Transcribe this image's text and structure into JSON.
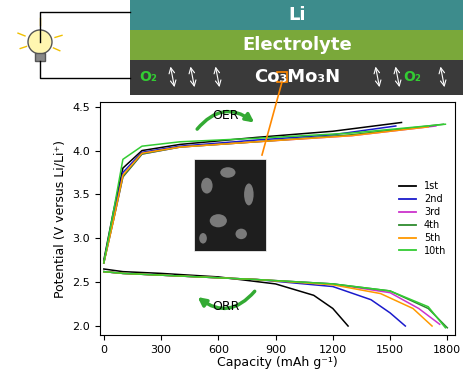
{
  "chart_data": {
    "type": "line",
    "xlabel": "Capacity (mAh g⁻¹)",
    "ylabel": "Potential (V versus Li/Li⁺)",
    "xlim": [
      -20,
      1840
    ],
    "xticks": [
      0,
      300,
      600,
      900,
      1200,
      1500,
      1800
    ],
    "ylim": [
      1.9,
      4.55
    ],
    "yticks": [
      2.0,
      2.5,
      3.0,
      3.5,
      4.0,
      4.5
    ],
    "legend": "center right",
    "annotations": [
      "OER",
      "ORR"
    ],
    "series": [
      {
        "name": "1st",
        "color": "#000000",
        "charge": {
          "x": [
            0,
            50,
            100,
            200,
            400,
            800,
            1200,
            1560
          ],
          "y": [
            2.75,
            3.3,
            3.8,
            4.0,
            4.07,
            4.15,
            4.22,
            4.32
          ]
        },
        "discharge": {
          "x": [
            0,
            100,
            300,
            600,
            900,
            1100,
            1200,
            1280
          ],
          "y": [
            2.65,
            2.62,
            2.6,
            2.56,
            2.48,
            2.35,
            2.2,
            2.0
          ]
        }
      },
      {
        "name": "2nd",
        "color": "#1a1acc",
        "charge": {
          "x": [
            0,
            50,
            100,
            200,
            400,
            800,
            1200,
            1530
          ],
          "y": [
            2.72,
            3.25,
            3.75,
            3.98,
            4.05,
            4.12,
            4.18,
            4.28
          ]
        },
        "discharge": {
          "x": [
            0,
            100,
            400,
            800,
            1200,
            1400,
            1500,
            1580
          ],
          "y": [
            2.62,
            2.6,
            2.57,
            2.53,
            2.45,
            2.3,
            2.15,
            2.0
          ]
        }
      },
      {
        "name": "3rd",
        "color": "#cc33cc",
        "charge": {
          "x": [
            0,
            50,
            100,
            200,
            400,
            800,
            1300,
            1740
          ],
          "y": [
            2.72,
            3.2,
            3.7,
            3.96,
            4.04,
            4.1,
            4.17,
            4.28
          ]
        },
        "discharge": {
          "x": [
            0,
            100,
            400,
            800,
            1200,
            1500,
            1650,
            1760
          ],
          "y": [
            2.62,
            2.6,
            2.57,
            2.53,
            2.48,
            2.38,
            2.2,
            2.02
          ]
        }
      },
      {
        "name": "4th",
        "color": "#2e8b2e",
        "charge": {
          "x": [
            0,
            50,
            100,
            200,
            400,
            800,
            1300,
            1780
          ],
          "y": [
            2.72,
            3.2,
            3.7,
            3.96,
            4.04,
            4.1,
            4.18,
            4.3
          ]
        },
        "discharge": {
          "x": [
            0,
            100,
            400,
            800,
            1200,
            1500,
            1700,
            1800
          ],
          "y": [
            2.62,
            2.6,
            2.57,
            2.53,
            2.48,
            2.4,
            2.2,
            1.98
          ]
        }
      },
      {
        "name": "5th",
        "color": "#ff9900",
        "charge": {
          "x": [
            0,
            50,
            100,
            200,
            400,
            800,
            1300,
            1700
          ],
          "y": [
            2.72,
            3.2,
            3.72,
            3.97,
            4.04,
            4.1,
            4.17,
            4.27
          ]
        },
        "discharge": {
          "x": [
            0,
            100,
            400,
            800,
            1200,
            1450,
            1620,
            1720
          ],
          "y": [
            2.62,
            2.6,
            2.57,
            2.53,
            2.47,
            2.37,
            2.2,
            2.0
          ]
        }
      },
      {
        "name": "10th",
        "color": "#33cc33",
        "charge": {
          "x": [
            0,
            50,
            100,
            200,
            400,
            800,
            1300,
            1790
          ],
          "y": [
            2.72,
            3.3,
            3.9,
            4.05,
            4.1,
            4.14,
            4.2,
            4.3
          ]
        },
        "discharge": {
          "x": [
            0,
            100,
            400,
            800,
            1200,
            1500,
            1700,
            1790
          ],
          "y": [
            2.62,
            2.6,
            2.57,
            2.53,
            2.48,
            2.4,
            2.22,
            1.98
          ]
        }
      }
    ]
  },
  "diagram": {
    "layers": [
      "Li",
      "Electrolyte",
      "Co₃Mo₃N"
    ],
    "gas": "O₂"
  }
}
